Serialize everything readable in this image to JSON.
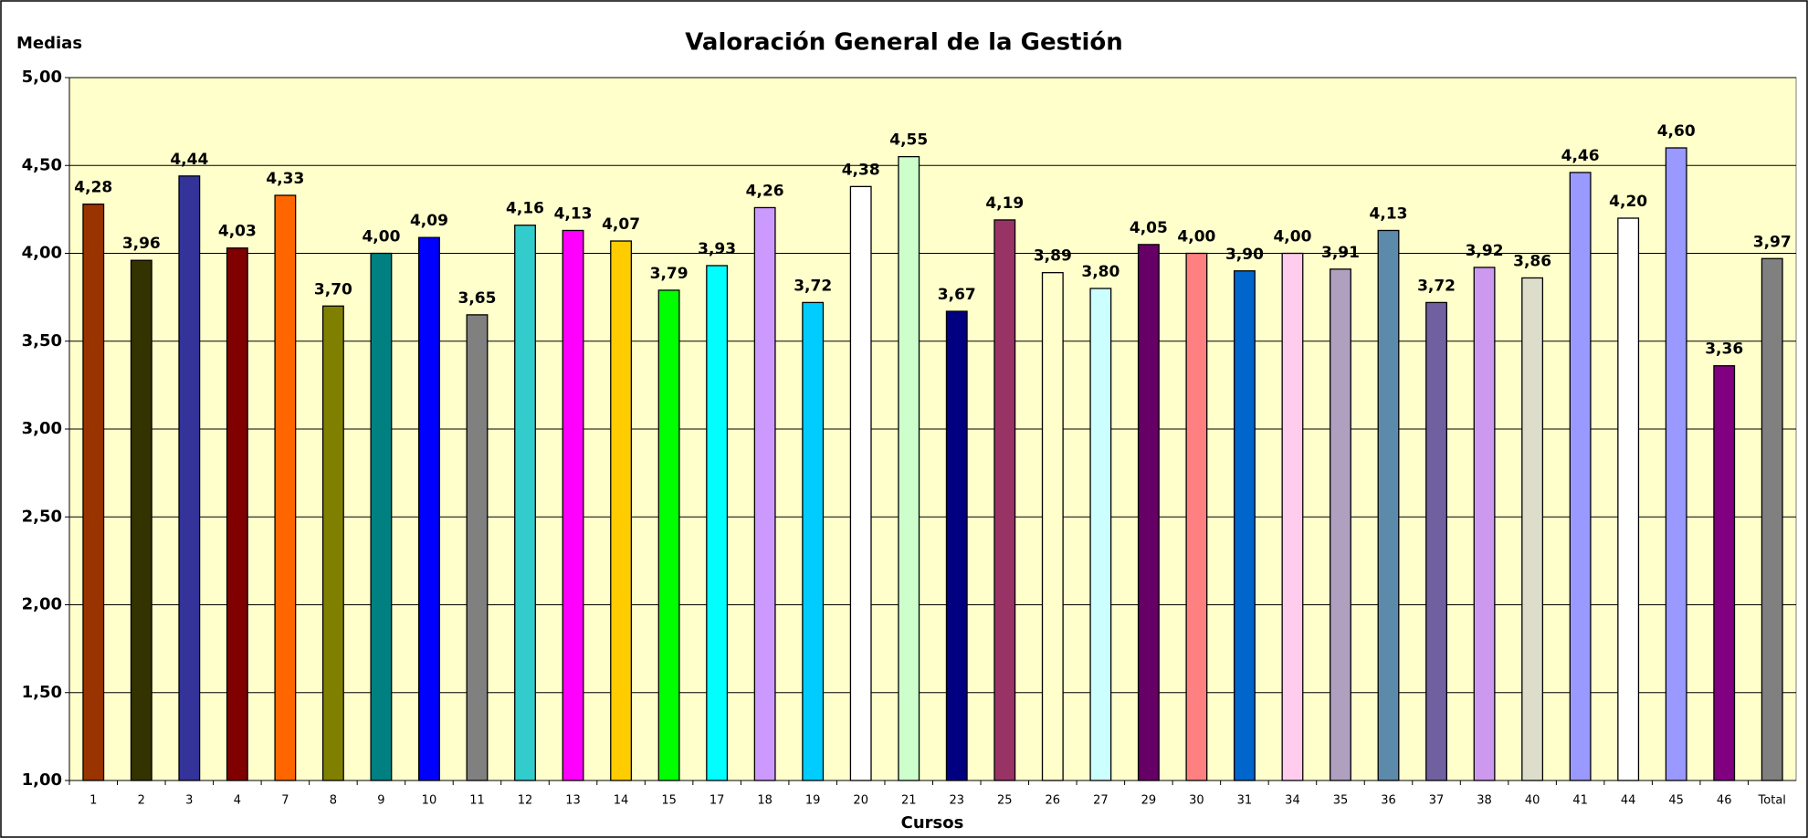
{
  "chart_data": {
    "type": "bar",
    "title": "Valoración General de la Gestión",
    "y_label": "Medias",
    "x_label": "Cursos",
    "categories": [
      "1",
      "2",
      "3",
      "4",
      "7",
      "8",
      "9",
      "10",
      "11",
      "12",
      "13",
      "14",
      "15",
      "17",
      "18",
      "19",
      "20",
      "21",
      "23",
      "25",
      "26",
      "27",
      "29",
      "30",
      "31",
      "34",
      "35",
      "36",
      "37",
      "38",
      "40",
      "41",
      "44",
      "45",
      "46",
      "Total"
    ],
    "values": [
      4.28,
      3.96,
      4.44,
      4.03,
      4.33,
      3.7,
      4.0,
      4.09,
      3.65,
      4.16,
      4.13,
      4.07,
      3.79,
      3.93,
      4.26,
      3.72,
      4.38,
      4.55,
      3.67,
      4.19,
      3.89,
      3.8,
      4.05,
      4.0,
      3.9,
      4.0,
      3.91,
      4.13,
      3.72,
      3.92,
      3.86,
      4.46,
      4.2,
      4.6,
      3.36,
      3.97
    ],
    "value_labels": [
      "4,28",
      "3,96",
      "4,44",
      "4,03",
      "4,33",
      "3,70",
      "4,00",
      "4,09",
      "3,65",
      "4,16",
      "4,13",
      "4,07",
      "3,79",
      "3,93",
      "4,26",
      "3,72",
      "4,38",
      "4,55",
      "3,67",
      "4,19",
      "3,89",
      "3,80",
      "4,05",
      "4,00",
      "3,90",
      "4,00",
      "3,91",
      "4,13",
      "3,72",
      "3,92",
      "3,86",
      "4,46",
      "4,20",
      "4,60",
      "3,36",
      "3,97"
    ],
    "colors": [
      "#993300",
      "#333300",
      "#333399",
      "#800000",
      "#FF6600",
      "#808000",
      "#008080",
      "#0000FF",
      "#808080",
      "#33CCCC",
      "#FF00FF",
      "#FFCC00",
      "#00FF00",
      "#00FFFF",
      "#CC99FF",
      "#00CCFF",
      "#FFFFFF",
      "#CCFFCC",
      "#000080",
      "#993366",
      "#FFFFCC",
      "#CCFFFF",
      "#660066",
      "#FF8080",
      "#0066CC",
      "#FFCCEE",
      "#B0A0C0",
      "#5C8AAA",
      "#7060A0",
      "#CC99EE",
      "#DDDDCC",
      "#9999FF",
      "#FFFFFF",
      "#9999FF",
      "#800080",
      "#808080"
    ],
    "ylim": [
      1,
      5
    ],
    "yticks": [
      {
        "value": 1,
        "label": "1,00"
      },
      {
        "value": 1.5,
        "label": "1,50"
      },
      {
        "value": 2,
        "label": "2,00"
      },
      {
        "value": 2.5,
        "label": "2,50"
      },
      {
        "value": 3,
        "label": "3,00"
      },
      {
        "value": 3.5,
        "label": "3,50"
      },
      {
        "value": 4,
        "label": "4,00"
      },
      {
        "value": 4.5,
        "label": "4,50"
      },
      {
        "value": 5,
        "label": "5,00"
      }
    ],
    "grid": true
  }
}
